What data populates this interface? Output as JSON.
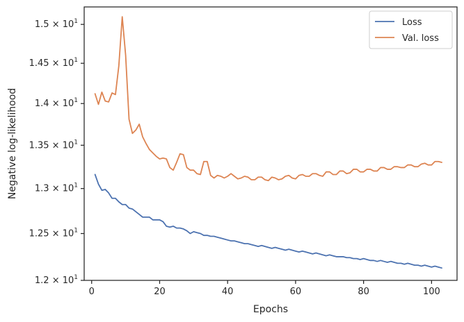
{
  "chart_data": {
    "type": "line",
    "xlabel": "Epochs",
    "ylabel": "Negative log-likelihood",
    "xlim": [
      -2.2,
      107.5
    ],
    "ylim": [
      12.0,
      15.23
    ],
    "yscale": "log",
    "grid": false,
    "legend_position": "top-right",
    "x_ticks": [
      {
        "value": 0,
        "label": "0"
      },
      {
        "value": 20,
        "label": "20"
      },
      {
        "value": 40,
        "label": "40"
      },
      {
        "value": 60,
        "label": "60"
      },
      {
        "value": 80,
        "label": "80"
      },
      {
        "value": 100,
        "label": "100"
      }
    ],
    "y_ticks": [
      {
        "value": 12.0,
        "mantissa": "1.2",
        "exp": "1"
      },
      {
        "value": 12.5,
        "mantissa": "1.25",
        "exp": "1"
      },
      {
        "value": 13.0,
        "mantissa": "1.3",
        "exp": "1"
      },
      {
        "value": 13.5,
        "mantissa": "1.35",
        "exp": "1"
      },
      {
        "value": 14.0,
        "mantissa": "1.4",
        "exp": "1"
      },
      {
        "value": 14.5,
        "mantissa": "1.45",
        "exp": "1"
      },
      {
        "value": 15.0,
        "mantissa": "1.5",
        "exp": "1"
      }
    ],
    "x": [
      1,
      2,
      3,
      4,
      5,
      6,
      7,
      8,
      9,
      10,
      11,
      12,
      13,
      14,
      15,
      16,
      17,
      18,
      19,
      20,
      21,
      22,
      23,
      24,
      25,
      26,
      27,
      28,
      29,
      30,
      31,
      32,
      33,
      34,
      35,
      36,
      37,
      38,
      39,
      40,
      41,
      42,
      43,
      44,
      45,
      46,
      47,
      48,
      49,
      50,
      51,
      52,
      53,
      54,
      55,
      56,
      57,
      58,
      59,
      60,
      61,
      62,
      63,
      64,
      65,
      66,
      67,
      68,
      69,
      70,
      71,
      72,
      73,
      74,
      75,
      76,
      77,
      78,
      79,
      80,
      81,
      82,
      83,
      84,
      85,
      86,
      87,
      88,
      89,
      90,
      91,
      92,
      93,
      94,
      95,
      96,
      97,
      98,
      99,
      100,
      101,
      102,
      103
    ],
    "series": [
      {
        "name": "Loss",
        "color": "#4c72b0",
        "values": [
          13.16,
          13.05,
          12.98,
          12.99,
          12.95,
          12.89,
          12.89,
          12.85,
          12.82,
          12.82,
          12.78,
          12.77,
          12.74,
          12.71,
          12.68,
          12.68,
          12.68,
          12.65,
          12.65,
          12.65,
          12.63,
          12.58,
          12.57,
          12.58,
          12.56,
          12.56,
          12.55,
          12.53,
          12.5,
          12.52,
          12.51,
          12.5,
          12.48,
          12.48,
          12.47,
          12.47,
          12.46,
          12.45,
          12.44,
          12.43,
          12.42,
          12.42,
          12.41,
          12.4,
          12.39,
          12.39,
          12.38,
          12.37,
          12.36,
          12.37,
          12.36,
          12.35,
          12.34,
          12.35,
          12.34,
          12.33,
          12.32,
          12.33,
          12.32,
          12.31,
          12.3,
          12.31,
          12.3,
          12.29,
          12.28,
          12.29,
          12.28,
          12.27,
          12.26,
          12.27,
          12.26,
          12.25,
          12.25,
          12.25,
          12.24,
          12.24,
          12.23,
          12.23,
          12.22,
          12.23,
          12.22,
          12.21,
          12.21,
          12.2,
          12.21,
          12.2,
          12.19,
          12.2,
          12.19,
          12.18,
          12.18,
          12.17,
          12.18,
          12.17,
          12.16,
          12.16,
          12.15,
          12.16,
          12.15,
          12.14,
          12.15,
          12.14,
          12.13
        ]
      },
      {
        "name": "Val. loss",
        "color": "#dd8452",
        "values": [
          14.12,
          13.99,
          14.14,
          14.03,
          14.02,
          14.13,
          14.11,
          14.47,
          15.1,
          14.6,
          13.81,
          13.64,
          13.68,
          13.75,
          13.6,
          13.52,
          13.45,
          13.41,
          13.37,
          13.34,
          13.35,
          13.34,
          13.24,
          13.21,
          13.3,
          13.4,
          13.39,
          13.24,
          13.21,
          13.21,
          13.17,
          13.16,
          13.31,
          13.31,
          13.15,
          13.12,
          13.15,
          13.14,
          13.12,
          13.14,
          13.17,
          13.14,
          13.11,
          13.12,
          13.14,
          13.13,
          13.1,
          13.1,
          13.13,
          13.13,
          13.1,
          13.09,
          13.13,
          13.12,
          13.1,
          13.11,
          13.14,
          13.15,
          13.12,
          13.11,
          13.15,
          13.16,
          13.14,
          13.14,
          13.17,
          13.17,
          13.15,
          13.14,
          13.19,
          13.19,
          13.16,
          13.16,
          13.2,
          13.2,
          13.17,
          13.18,
          13.22,
          13.22,
          13.19,
          13.19,
          13.22,
          13.22,
          13.2,
          13.2,
          13.24,
          13.24,
          13.22,
          13.22,
          13.25,
          13.25,
          13.24,
          13.24,
          13.27,
          13.27,
          13.25,
          13.25,
          13.28,
          13.29,
          13.27,
          13.27,
          13.31,
          13.31,
          13.3
        ]
      }
    ]
  }
}
